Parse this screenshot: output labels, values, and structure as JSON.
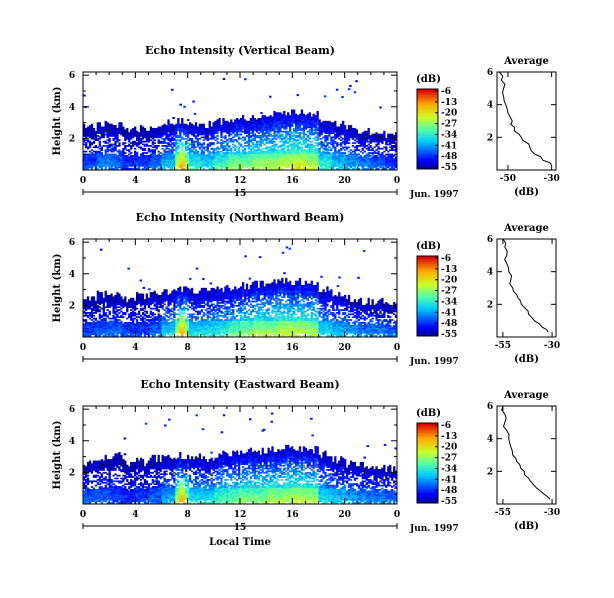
{
  "chart_data": [
    {
      "type": "heatmap",
      "title": "Echo Intensity (Vertical Beam)",
      "ylabel": "Height (km)",
      "xticks": [
        "0",
        "4",
        "8",
        "12",
        "16",
        "20",
        "0"
      ],
      "xlim": [
        0,
        24
      ],
      "yticks": [
        "2",
        "4",
        "6"
      ],
      "ylim": [
        0,
        6.2
      ],
      "day_label": "15",
      "date_label": "Jun. 1997",
      "colorbar": {
        "unit": "(dB)",
        "ticks": [
          "-6",
          "-13",
          "-20",
          "-27",
          "-34",
          "-41",
          "-48",
          "-55"
        ]
      },
      "profile": {
        "title": "Average",
        "xlabel": "(dB)",
        "xticks": [
          "-50",
          "-30"
        ],
        "xlim": [
          -55,
          -28
        ],
        "yticks": [
          "2",
          "4",
          "6"
        ],
        "ylim": [
          0,
          6
        ],
        "heights": [
          0.3,
          0.6,
          1.0,
          1.4,
          1.8,
          2.2,
          2.6,
          3.0,
          3.5,
          4.0,
          4.5,
          5.0,
          5.5,
          6.0
        ],
        "values": [
          -30,
          -34,
          -38,
          -40,
          -43,
          -45,
          -47,
          -48,
          -50,
          -51,
          -52,
          -52,
          -53,
          -54
        ]
      },
      "activity": [
        0.25,
        0.35,
        0.3,
        0.2,
        0.25,
        0.3,
        0.45,
        0.8,
        0.55,
        0.5,
        0.6,
        0.7,
        0.7,
        0.75,
        0.75,
        0.8,
        0.85,
        0.8,
        0.55,
        0.45,
        0.4,
        0.35,
        0.3,
        0.25
      ],
      "top_km": [
        2.7,
        2.9,
        2.8,
        2.5,
        2.6,
        2.7,
        3.0,
        3.0,
        2.9,
        2.8,
        3.0,
        3.2,
        3.2,
        3.3,
        3.5,
        3.6,
        3.6,
        3.5,
        3.2,
        2.9,
        2.6,
        2.4,
        2.3,
        2.2
      ]
    },
    {
      "type": "heatmap",
      "title": "Echo Intensity (Northward Beam)",
      "ylabel": "Height (km)",
      "xticks": [
        "0",
        "4",
        "8",
        "12",
        "16",
        "20",
        "0"
      ],
      "xlim": [
        0,
        24
      ],
      "yticks": [
        "2",
        "4",
        "6"
      ],
      "ylim": [
        0,
        6.2
      ],
      "day_label": "15",
      "date_label": "Jun. 1997",
      "colorbar": {
        "unit": "(dB)",
        "ticks": [
          "-6",
          "-13",
          "-20",
          "-27",
          "-34",
          "-41",
          "-48",
          "-55"
        ]
      },
      "profile": {
        "title": "Average",
        "xlabel": "(dB)",
        "xticks": [
          "-55",
          "-30"
        ],
        "xlim": [
          -58,
          -28
        ],
        "yticks": [
          "2",
          "4",
          "6"
        ],
        "ylim": [
          0,
          6
        ],
        "heights": [
          0.3,
          0.6,
          1.0,
          1.4,
          1.8,
          2.2,
          2.6,
          3.0,
          3.5,
          4.0,
          4.5,
          5.0,
          5.5,
          6.0
        ],
        "values": [
          -32,
          -35,
          -39,
          -42,
          -44,
          -46,
          -48,
          -50,
          -51,
          -52,
          -53,
          -53,
          -54,
          -55
        ]
      },
      "activity": [
        0.25,
        0.3,
        0.3,
        0.25,
        0.25,
        0.3,
        0.45,
        0.75,
        0.5,
        0.5,
        0.55,
        0.65,
        0.7,
        0.75,
        0.75,
        0.8,
        0.8,
        0.75,
        0.5,
        0.45,
        0.4,
        0.35,
        0.35,
        0.3
      ],
      "top_km": [
        2.5,
        2.7,
        2.6,
        2.4,
        2.6,
        2.7,
        2.8,
        2.9,
        2.9,
        2.9,
        3.0,
        3.1,
        3.2,
        3.3,
        3.4,
        3.5,
        3.5,
        3.4,
        3.0,
        2.7,
        2.4,
        2.2,
        2.2,
        2.1
      ]
    },
    {
      "type": "heatmap",
      "title": "Echo Intensity (Eastward Beam)",
      "ylabel": "Height (km)",
      "xlabel": "Local Time",
      "xticks": [
        "0",
        "4",
        "8",
        "12",
        "16",
        "20",
        "0"
      ],
      "xlim": [
        0,
        24
      ],
      "yticks": [
        "2",
        "4",
        "6"
      ],
      "ylim": [
        0,
        6.2
      ],
      "day_label": "15",
      "date_label": "Jun. 1997",
      "colorbar": {
        "unit": "(dB)",
        "ticks": [
          "-6",
          "-13",
          "-20",
          "-27",
          "-34",
          "-41",
          "-48",
          "-55"
        ]
      },
      "profile": {
        "title": "Average",
        "xlabel": "(dB)",
        "xticks": [
          "-55",
          "-30"
        ],
        "xlim": [
          -58,
          -28
        ],
        "yticks": [
          "2",
          "4",
          "6"
        ],
        "ylim": [
          0,
          6
        ],
        "heights": [
          0.3,
          0.6,
          1.0,
          1.4,
          1.8,
          2.2,
          2.6,
          3.0,
          3.5,
          4.0,
          4.5,
          5.0,
          5.5,
          6.0
        ],
        "values": [
          -31,
          -34,
          -38,
          -41,
          -44,
          -46,
          -48,
          -50,
          -51,
          -52,
          -53,
          -54,
          -54,
          -55
        ]
      },
      "activity": [
        0.3,
        0.3,
        0.25,
        0.2,
        0.25,
        0.3,
        0.4,
        0.75,
        0.5,
        0.5,
        0.6,
        0.65,
        0.7,
        0.7,
        0.75,
        0.75,
        0.8,
        0.75,
        0.5,
        0.45,
        0.4,
        0.35,
        0.35,
        0.3
      ],
      "top_km": [
        2.6,
        2.9,
        3.0,
        2.6,
        2.6,
        2.8,
        3.0,
        3.0,
        3.0,
        2.9,
        3.1,
        3.2,
        3.3,
        3.3,
        3.4,
        3.5,
        3.5,
        3.4,
        3.1,
        2.8,
        2.5,
        2.4,
        2.3,
        2.2
      ]
    }
  ]
}
